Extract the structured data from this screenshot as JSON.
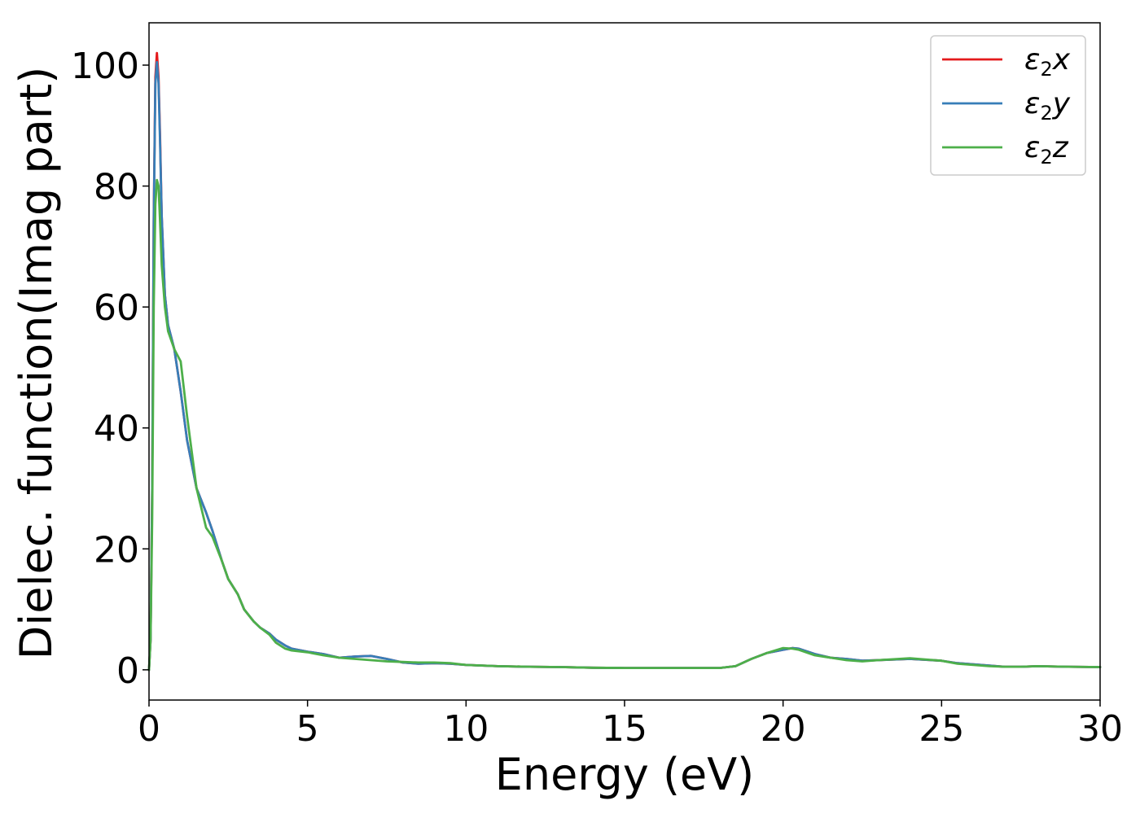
{
  "chart_data": {
    "type": "line",
    "xlabel": "Energy (eV)",
    "ylabel": "Dielec. function(Imag part)",
    "xlim": [
      0,
      30
    ],
    "ylim": [
      -5,
      107
    ],
    "xticks": [
      0,
      5,
      10,
      15,
      20,
      25,
      30
    ],
    "yticks": [
      0,
      20,
      40,
      60,
      80,
      100
    ],
    "grid": false,
    "legend_position": "top-right",
    "series": [
      {
        "name": "ε₂x",
        "legend_base": "ε",
        "legend_sub": "2",
        "legend_axis": "x",
        "color": "#e41a1c",
        "x": [
          0.0,
          0.05,
          0.1,
          0.15,
          0.2,
          0.25,
          0.3,
          0.35,
          0.4,
          0.5,
          0.6,
          0.8,
          1.0,
          1.2,
          1.5,
          1.8,
          2.0,
          2.3,
          2.5,
          2.8,
          3.0,
          3.3,
          3.5,
          3.8,
          4.0,
          4.3,
          4.5,
          5.0,
          5.5,
          6.0,
          6.5,
          7.0,
          7.5,
          8.0,
          8.5,
          9.0,
          9.5,
          10.0,
          11.0,
          12.0,
          13.0,
          14.0,
          15.0,
          16.0,
          17.0,
          18.0,
          18.5,
          19.0,
          19.5,
          20.0,
          20.3,
          20.5,
          21.0,
          21.5,
          22.0,
          22.5,
          23.0,
          24.0,
          25.0,
          25.5,
          26.0,
          26.5,
          27.0,
          27.5,
          28.0,
          29.0,
          30.0
        ],
        "y": [
          0,
          5,
          30,
          75,
          98,
          102,
          98,
          88,
          75,
          62,
          57,
          53,
          46,
          38,
          30,
          26,
          23,
          18,
          15,
          12.5,
          10,
          8,
          7,
          6,
          5,
          4,
          3.5,
          3,
          2.6,
          2,
          2.2,
          2.3,
          1.8,
          1.2,
          1,
          1.1,
          1,
          0.8,
          0.6,
          0.5,
          0.45,
          0.35,
          0.3,
          0.3,
          0.3,
          0.3,
          0.6,
          1.8,
          2.8,
          3.3,
          3.6,
          3.5,
          2.6,
          2,
          1.8,
          1.5,
          1.6,
          1.8,
          1.5,
          1.1,
          0.9,
          0.7,
          0.5,
          0.5,
          0.6,
          0.5,
          0.45
        ]
      },
      {
        "name": "ε₂y",
        "legend_base": "ε",
        "legend_sub": "2",
        "legend_axis": "y",
        "color": "#377eb8",
        "x": [
          0.0,
          0.05,
          0.1,
          0.15,
          0.2,
          0.25,
          0.3,
          0.35,
          0.4,
          0.5,
          0.6,
          0.8,
          1.0,
          1.2,
          1.5,
          1.8,
          2.0,
          2.3,
          2.5,
          2.8,
          3.0,
          3.3,
          3.5,
          3.8,
          4.0,
          4.3,
          4.5,
          5.0,
          5.5,
          6.0,
          6.5,
          7.0,
          7.5,
          8.0,
          8.5,
          9.0,
          9.5,
          10.0,
          11.0,
          12.0,
          13.0,
          14.0,
          15.0,
          16.0,
          17.0,
          18.0,
          18.5,
          19.0,
          19.5,
          20.0,
          20.3,
          20.5,
          21.0,
          21.5,
          22.0,
          22.5,
          23.0,
          24.0,
          25.0,
          25.5,
          26.0,
          26.5,
          27.0,
          27.5,
          28.0,
          29.0,
          30.0
        ],
        "y": [
          0,
          5,
          30,
          74,
          97,
          100.5,
          97,
          87,
          75,
          62,
          57,
          53,
          46,
          38,
          30,
          26,
          23,
          18,
          15,
          12.5,
          10,
          8,
          7,
          6,
          5,
          4,
          3.5,
          3,
          2.6,
          2,
          2.2,
          2.3,
          1.8,
          1.2,
          1,
          1.1,
          1,
          0.8,
          0.6,
          0.5,
          0.45,
          0.35,
          0.3,
          0.3,
          0.3,
          0.3,
          0.6,
          1.8,
          2.8,
          3.3,
          3.6,
          3.5,
          2.6,
          2,
          1.8,
          1.5,
          1.6,
          1.8,
          1.5,
          1.1,
          0.9,
          0.7,
          0.5,
          0.5,
          0.6,
          0.5,
          0.45
        ]
      },
      {
        "name": "ε₂z",
        "legend_base": "ε",
        "legend_sub": "2",
        "legend_axis": "z",
        "color": "#4daf4a",
        "x": [
          0.0,
          0.05,
          0.1,
          0.15,
          0.2,
          0.25,
          0.3,
          0.35,
          0.4,
          0.5,
          0.6,
          0.8,
          1.0,
          1.2,
          1.5,
          1.8,
          2.0,
          2.3,
          2.5,
          2.8,
          3.0,
          3.3,
          3.5,
          3.8,
          4.0,
          4.3,
          4.5,
          5.0,
          5.5,
          6.0,
          6.5,
          7.0,
          7.5,
          8.0,
          8.5,
          9.0,
          9.5,
          10.0,
          11.0,
          12.0,
          13.0,
          14.0,
          15.0,
          16.0,
          17.0,
          18.0,
          18.5,
          19.0,
          19.5,
          20.0,
          20.3,
          20.5,
          21.0,
          21.5,
          22.0,
          22.5,
          23.0,
          24.0,
          25.0,
          25.5,
          26.0,
          26.5,
          27.0,
          27.5,
          28.0,
          29.0,
          30.0
        ],
        "y": [
          0,
          5,
          25,
          60,
          77,
          81,
          80,
          74,
          67,
          60,
          56,
          53,
          51,
          42,
          30,
          23.5,
          22,
          18,
          15,
          12.5,
          10,
          8,
          7,
          5.8,
          4.5,
          3.5,
          3.2,
          2.9,
          2.4,
          2,
          1.8,
          1.6,
          1.4,
          1.3,
          1.2,
          1.2,
          1.1,
          0.8,
          0.6,
          0.5,
          0.45,
          0.35,
          0.3,
          0.3,
          0.3,
          0.3,
          0.6,
          1.8,
          2.8,
          3.6,
          3.5,
          3.3,
          2.4,
          2,
          1.6,
          1.4,
          1.6,
          1.9,
          1.5,
          1.0,
          0.8,
          0.6,
          0.5,
          0.5,
          0.6,
          0.5,
          0.45
        ]
      }
    ]
  }
}
